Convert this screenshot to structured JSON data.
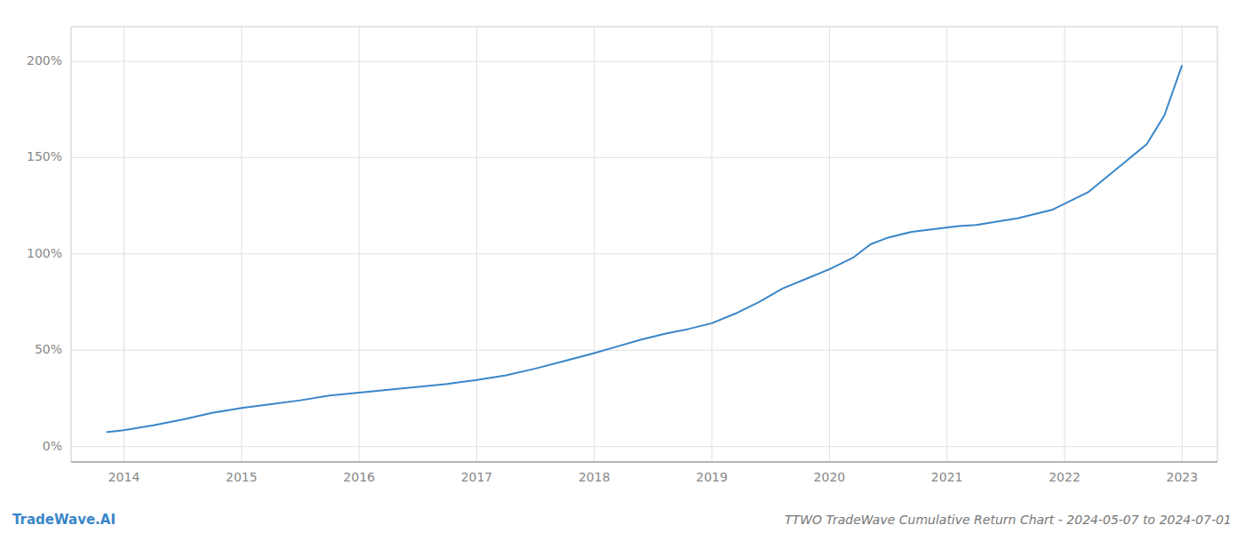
{
  "chart_data": {
    "type": "line",
    "title": "TTWO TradeWave Cumulative Return Chart - 2024-05-07 to 2024-07-01",
    "annotations": [
      "TradeWave.AI"
    ],
    "color": "#3a86c8",
    "grid": true,
    "x": [
      2013.85,
      2014.0,
      2014.25,
      2014.5,
      2014.75,
      2015.0,
      2015.25,
      2015.5,
      2015.75,
      2016.0,
      2016.25,
      2016.5,
      2016.75,
      2017.0,
      2017.25,
      2017.5,
      2017.75,
      2018.0,
      2018.2,
      2018.4,
      2018.6,
      2018.8,
      2019.0,
      2019.2,
      2019.4,
      2019.6,
      2019.8,
      2020.0,
      2020.2,
      2020.35,
      2020.5,
      2020.7,
      2020.9,
      2021.1,
      2021.25,
      2021.4,
      2021.6,
      2021.9,
      2022.2,
      2022.5,
      2022.7,
      2022.85,
      2023.0
    ],
    "values": [
      7.5,
      8.5,
      11.0,
      14.0,
      17.5,
      20.0,
      22.0,
      24.0,
      26.5,
      28.0,
      29.5,
      31.0,
      32.5,
      34.5,
      37.0,
      40.5,
      44.5,
      48.5,
      52.0,
      55.5,
      58.5,
      61.0,
      64.0,
      69.0,
      75.0,
      82.0,
      87.0,
      92.0,
      98.0,
      105.0,
      108.5,
      111.5,
      113.0,
      114.5,
      115.0,
      116.5,
      118.5,
      123.0,
      132.0,
      147.0,
      157.0,
      172.0,
      198.0
    ],
    "xlim": [
      2013.55,
      2023.3
    ],
    "xticks": [
      2014,
      2015,
      2016,
      2017,
      2018,
      2019,
      2020,
      2021,
      2022,
      2023
    ],
    "ylim": [
      -8,
      218
    ],
    "yticks": [
      {
        "value": 0,
        "label": "0%"
      },
      {
        "value": 50,
        "label": "50%"
      },
      {
        "value": 100,
        "label": "100%"
      },
      {
        "value": 150,
        "label": "150%"
      },
      {
        "value": 200,
        "label": "200%"
      }
    ]
  }
}
